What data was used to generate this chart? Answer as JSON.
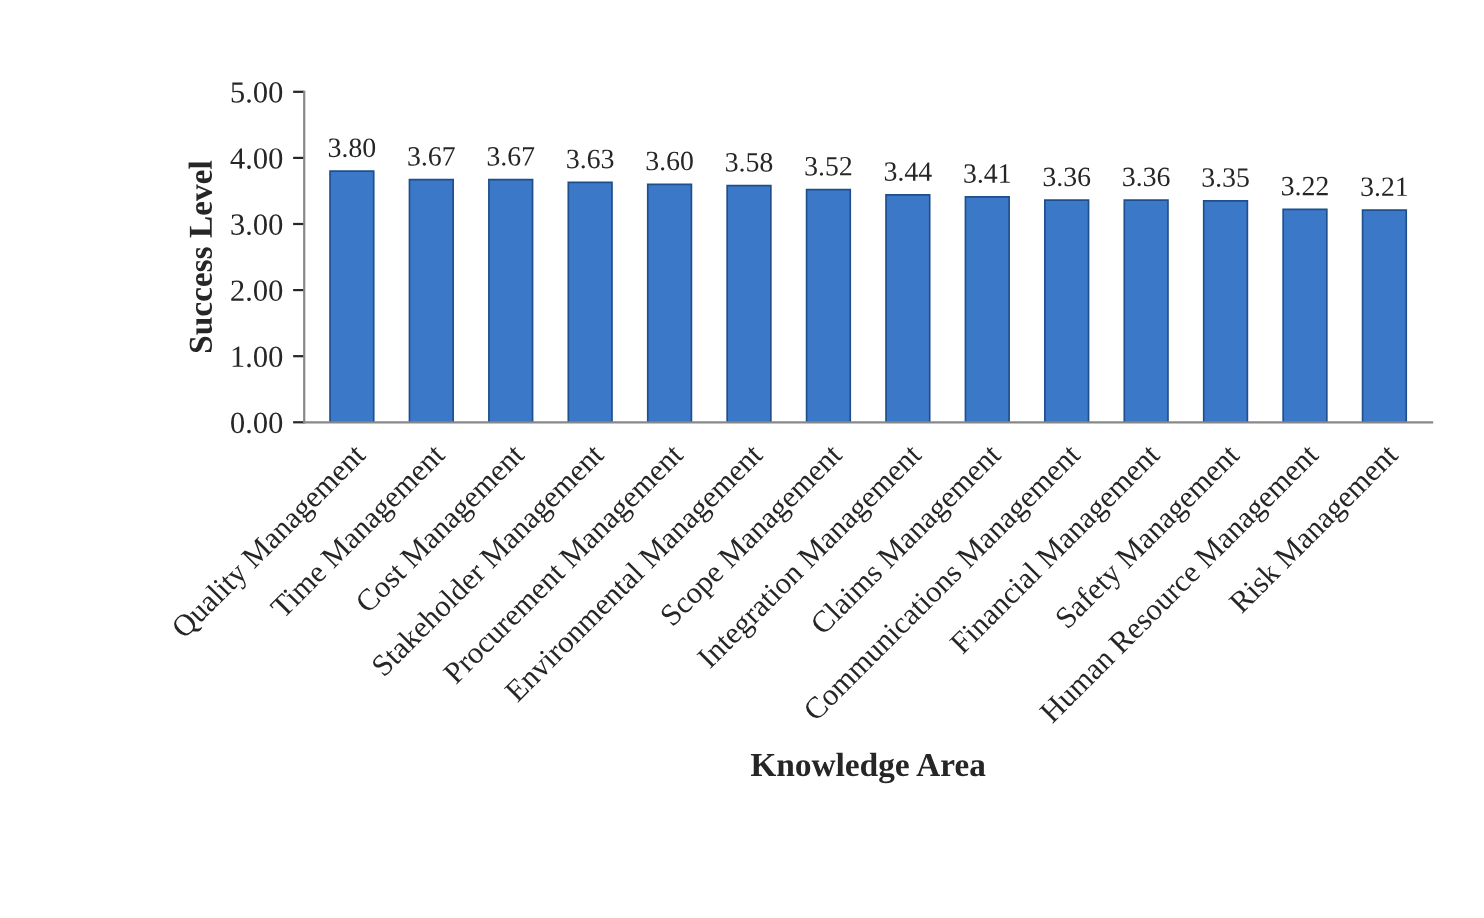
{
  "chart_data": {
    "type": "bar",
    "xlabel": "Knowledge Area",
    "ylabel": "Success Level",
    "categories": [
      "Quality Management",
      "Time Management",
      "Cost Management",
      "Stakeholder Management",
      "Procurement Management",
      "Environmental Management",
      "Scope Management",
      "Integration Management",
      "Claims Management",
      "Communications Management",
      "Financial Management",
      "Safety Management",
      "Human Resource Management",
      "Risk Management"
    ],
    "values": [
      3.8,
      3.67,
      3.67,
      3.63,
      3.6,
      3.58,
      3.52,
      3.44,
      3.41,
      3.36,
      3.36,
      3.35,
      3.22,
      3.21
    ],
    "value_labels": [
      "3.80",
      "3.67",
      "3.67",
      "3.63",
      "3.60",
      "3.58",
      "3.52",
      "3.44",
      "3.41",
      "3.36",
      "3.36",
      "3.35",
      "3.22",
      "3.21"
    ],
    "color": "#3c78c8",
    "ylim": [
      0,
      5
    ],
    "yticks": [
      {
        "value": 0,
        "label": "0.00"
      },
      {
        "value": 1,
        "label": "1.00"
      },
      {
        "value": 2,
        "label": "2.00"
      },
      {
        "value": 3,
        "label": "3.00"
      },
      {
        "value": 4,
        "label": "4.00"
      },
      {
        "value": 5,
        "label": "5.00"
      }
    ],
    "grid": false,
    "legend": false
  }
}
